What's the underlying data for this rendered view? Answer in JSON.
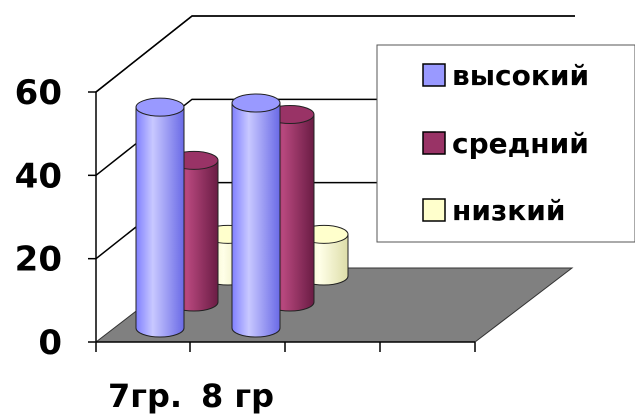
{
  "chart_data": {
    "type": "bar",
    "style": "3d-cylinder",
    "categories": [
      "7гр.",
      "8 гр"
    ],
    "series": [
      {
        "name": "высокий",
        "values": [
          53,
          54
        ],
        "color": "#9999ff"
      },
      {
        "name": "средний",
        "values": [
          34,
          45
        ],
        "color": "#993366"
      },
      {
        "name": "низкий",
        "values": [
          10,
          10
        ],
        "color": "#ffffcc"
      }
    ],
    "yticks": [
      "0",
      "20",
      "40",
      "60"
    ],
    "ylim": [
      0,
      60
    ],
    "grid": true,
    "legend_position": "right",
    "floor_color": "#808080"
  }
}
